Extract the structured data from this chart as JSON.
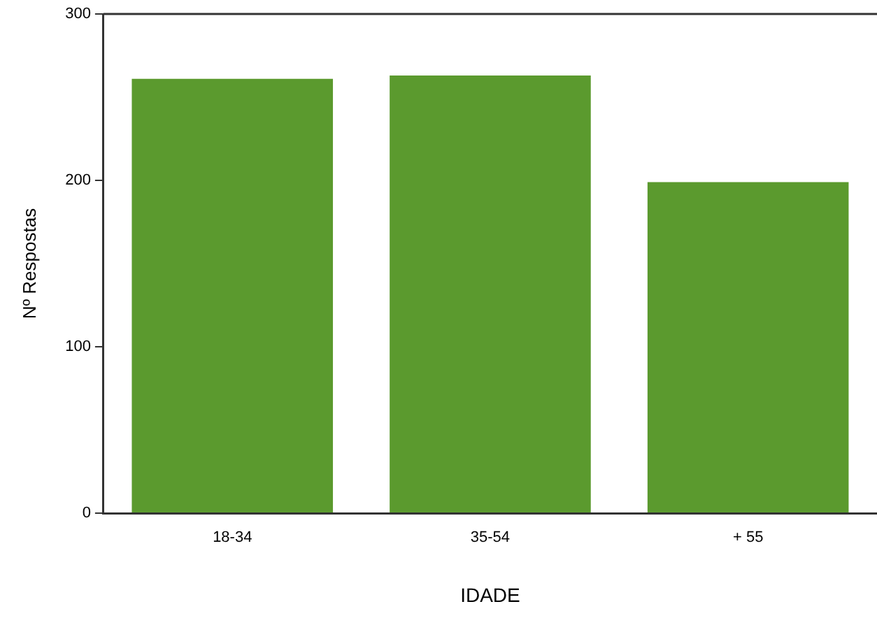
{
  "chart_data": {
    "type": "bar",
    "xlabel": "IDADE",
    "ylabel": "Nº Respostas",
    "categories": [
      "18-34",
      "35-54",
      "+ 55"
    ],
    "values": [
      261,
      263,
      199
    ],
    "color": "#5b9a2e",
    "ylim": [
      0,
      300
    ],
    "yticks": [
      0,
      100,
      200,
      300
    ],
    "grid": false,
    "legend": false
  }
}
